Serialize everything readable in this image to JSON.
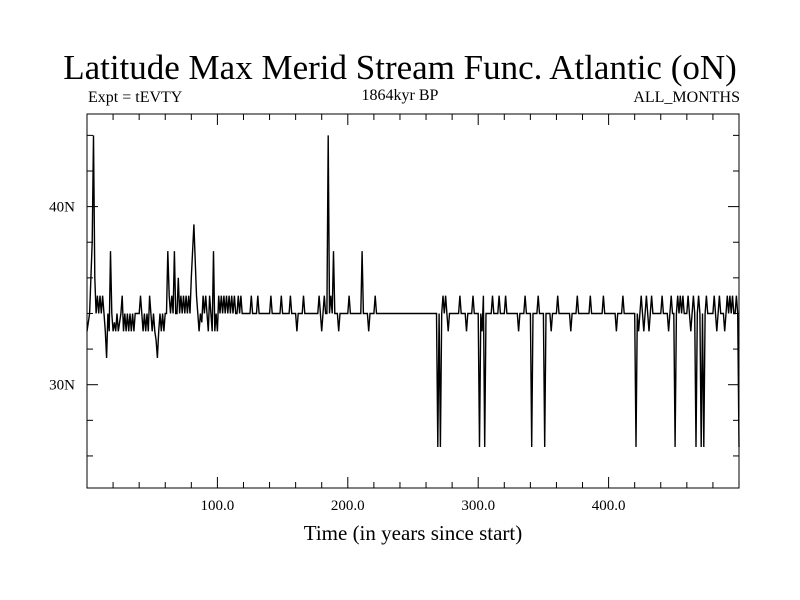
{
  "chart_data": {
    "type": "line",
    "title": "Latitude Max Merid Stream Func. Atlantic (oN)",
    "subtitle_left": "Expt = tEVTY",
    "subtitle_center": "1864kyr BP",
    "subtitle_right": "ALL_MONTHS",
    "xlabel": "Time (in years since start)",
    "ylabel": "",
    "xlim": [
      0,
      500
    ],
    "ylim": [
      24.2,
      45.2
    ],
    "x_ticks": [
      {
        "value": 100,
        "label": "100.0"
      },
      {
        "value": 200,
        "label": "200.0"
      },
      {
        "value": 300,
        "label": "300.0"
      },
      {
        "value": 400,
        "label": "400.0"
      }
    ],
    "y_ticks": [
      {
        "value": 30,
        "label": "30N"
      },
      {
        "value": 40,
        "label": "40N"
      }
    ],
    "series": [
      {
        "name": "latitude_max",
        "color": "#000000",
        "points": [
          [
            0,
            33
          ],
          [
            2,
            34
          ],
          [
            3,
            36
          ],
          [
            4,
            38
          ],
          [
            5,
            44
          ],
          [
            6,
            36
          ],
          [
            7,
            34
          ],
          [
            8,
            35
          ],
          [
            9,
            34
          ],
          [
            10,
            35
          ],
          [
            11,
            34
          ],
          [
            12,
            35
          ],
          [
            13,
            34
          ],
          [
            14,
            33
          ],
          [
            15,
            31.5
          ],
          [
            16,
            34
          ],
          [
            17,
            33
          ],
          [
            18,
            37.5
          ],
          [
            19,
            34
          ],
          [
            20,
            33
          ],
          [
            21,
            33.5
          ],
          [
            22,
            33
          ],
          [
            23,
            34
          ],
          [
            24,
            33
          ],
          [
            25,
            33.5
          ],
          [
            26,
            34
          ],
          [
            27,
            35
          ],
          [
            28,
            33
          ],
          [
            29,
            34
          ],
          [
            30,
            33
          ],
          [
            31,
            34
          ],
          [
            32,
            33
          ],
          [
            33,
            34
          ],
          [
            34,
            33
          ],
          [
            35,
            34
          ],
          [
            36,
            33
          ],
          [
            37,
            34
          ],
          [
            38,
            34
          ],
          [
            40,
            34
          ],
          [
            41,
            35
          ],
          [
            42,
            34
          ],
          [
            43,
            33
          ],
          [
            44,
            34
          ],
          [
            45,
            33
          ],
          [
            46,
            34
          ],
          [
            47,
            33
          ],
          [
            48,
            35
          ],
          [
            49,
            34
          ],
          [
            50,
            33
          ],
          [
            51,
            34
          ],
          [
            52,
            33
          ],
          [
            53,
            32.5
          ],
          [
            54,
            31.5
          ],
          [
            55,
            33
          ],
          [
            56,
            34
          ],
          [
            57,
            33
          ],
          [
            58,
            34
          ],
          [
            59,
            33
          ],
          [
            60,
            34
          ],
          [
            61,
            34
          ],
          [
            62,
            37.5
          ],
          [
            63,
            35
          ],
          [
            64,
            34
          ],
          [
            65,
            35
          ],
          [
            66,
            34
          ],
          [
            67,
            37.5
          ],
          [
            68,
            34
          ],
          [
            69,
            34
          ],
          [
            70,
            36
          ],
          [
            71,
            34
          ],
          [
            72,
            35
          ],
          [
            73,
            34
          ],
          [
            74,
            35
          ],
          [
            75,
            34
          ],
          [
            76,
            35
          ],
          [
            77,
            34
          ],
          [
            78,
            35
          ],
          [
            79,
            34
          ],
          [
            80,
            36
          ],
          [
            81,
            37.5
          ],
          [
            82,
            39
          ],
          [
            83,
            37
          ],
          [
            84,
            35
          ],
          [
            85,
            34
          ],
          [
            86,
            33
          ],
          [
            87,
            34
          ],
          [
            88,
            33.5
          ],
          [
            89,
            35
          ],
          [
            90,
            34
          ],
          [
            91,
            35
          ],
          [
            92,
            34
          ],
          [
            93,
            33
          ],
          [
            94,
            35
          ],
          [
            95,
            34
          ],
          [
            96,
            33
          ],
          [
            97,
            37.5
          ],
          [
            98,
            33
          ],
          [
            99,
            34
          ],
          [
            100,
            33
          ],
          [
            101,
            35
          ],
          [
            102,
            34
          ],
          [
            103,
            35
          ],
          [
            104,
            34
          ],
          [
            105,
            35
          ],
          [
            106,
            34
          ],
          [
            107,
            35
          ],
          [
            108,
            34
          ],
          [
            109,
            35
          ],
          [
            110,
            34
          ],
          [
            111,
            35
          ],
          [
            112,
            34
          ],
          [
            113,
            35
          ],
          [
            114,
            34
          ],
          [
            115,
            34
          ],
          [
            116,
            35
          ],
          [
            117,
            34
          ],
          [
            118,
            35
          ],
          [
            119,
            34
          ],
          [
            120,
            34
          ],
          [
            125,
            34
          ],
          [
            126,
            35
          ],
          [
            127,
            34
          ],
          [
            130,
            34
          ],
          [
            131,
            35
          ],
          [
            132,
            34
          ],
          [
            140,
            34
          ],
          [
            141,
            35
          ],
          [
            142,
            34
          ],
          [
            148,
            34
          ],
          [
            149,
            35
          ],
          [
            150,
            34
          ],
          [
            155,
            34
          ],
          [
            156,
            35
          ],
          [
            157,
            34
          ],
          [
            160,
            34
          ],
          [
            161,
            33
          ],
          [
            162,
            34
          ],
          [
            165,
            34
          ],
          [
            166,
            35
          ],
          [
            167,
            34
          ],
          [
            177,
            34
          ],
          [
            178,
            35
          ],
          [
            179,
            34
          ],
          [
            180,
            33
          ],
          [
            181,
            34
          ],
          [
            182,
            35
          ],
          [
            183,
            34
          ],
          [
            184,
            34
          ],
          [
            185,
            44
          ],
          [
            186,
            34
          ],
          [
            187,
            35
          ],
          [
            188,
            34
          ],
          [
            189,
            37.5
          ],
          [
            190,
            34
          ],
          [
            191,
            34
          ],
          [
            192,
            34
          ],
          [
            193,
            33
          ],
          [
            194,
            34
          ],
          [
            200,
            34
          ],
          [
            201,
            35
          ],
          [
            202,
            34
          ],
          [
            210,
            34
          ],
          [
            211,
            37.5
          ],
          [
            212,
            34
          ],
          [
            215,
            34
          ],
          [
            216,
            33
          ],
          [
            217,
            34
          ],
          [
            220,
            34
          ],
          [
            221,
            35
          ],
          [
            222,
            34
          ],
          [
            268,
            34
          ],
          [
            269,
            26.5
          ],
          [
            270,
            34
          ],
          [
            271,
            26.5
          ],
          [
            272,
            34
          ],
          [
            273,
            35
          ],
          [
            274,
            34
          ],
          [
            275,
            35
          ],
          [
            276,
            34
          ],
          [
            277,
            33
          ],
          [
            278,
            34
          ],
          [
            285,
            34
          ],
          [
            286,
            35
          ],
          [
            287,
            34
          ],
          [
            290,
            34
          ],
          [
            291,
            33
          ],
          [
            292,
            34
          ],
          [
            295,
            34
          ],
          [
            296,
            35
          ],
          [
            297,
            34
          ],
          [
            298,
            34
          ],
          [
            299,
            34
          ],
          [
            300,
            34
          ],
          [
            301,
            26.5
          ],
          [
            302,
            34
          ],
          [
            303,
            33
          ],
          [
            304,
            35
          ],
          [
            305,
            26.5
          ],
          [
            306,
            34
          ],
          [
            307,
            34
          ],
          [
            310,
            34
          ],
          [
            311,
            35
          ],
          [
            312,
            34
          ],
          [
            315,
            34
          ],
          [
            316,
            35
          ],
          [
            317,
            34
          ],
          [
            320,
            34
          ],
          [
            321,
            35
          ],
          [
            322,
            34
          ],
          [
            330,
            34
          ],
          [
            331,
            33
          ],
          [
            332,
            34
          ],
          [
            335,
            34
          ],
          [
            336,
            35
          ],
          [
            337,
            34
          ],
          [
            340,
            34
          ],
          [
            341,
            26.5
          ],
          [
            342,
            34
          ],
          [
            345,
            34
          ],
          [
            346,
            35
          ],
          [
            347,
            34
          ],
          [
            350,
            34
          ],
          [
            351,
            26.5
          ],
          [
            352,
            34
          ],
          [
            355,
            34
          ],
          [
            356,
            33
          ],
          [
            357,
            34
          ],
          [
            360,
            34
          ],
          [
            361,
            35
          ],
          [
            362,
            34
          ],
          [
            370,
            34
          ],
          [
            371,
            33
          ],
          [
            372,
            34
          ],
          [
            375,
            34
          ],
          [
            376,
            35
          ],
          [
            377,
            34
          ],
          [
            385,
            34
          ],
          [
            386,
            35
          ],
          [
            387,
            34
          ],
          [
            395,
            34
          ],
          [
            396,
            35
          ],
          [
            397,
            34
          ],
          [
            405,
            34
          ],
          [
            406,
            33
          ],
          [
            407,
            34
          ],
          [
            410,
            34
          ],
          [
            411,
            35
          ],
          [
            412,
            34
          ],
          [
            420,
            34
          ],
          [
            421,
            26.5
          ],
          [
            422,
            34
          ],
          [
            423,
            33
          ],
          [
            424,
            34
          ],
          [
            425,
            35
          ],
          [
            426,
            34
          ],
          [
            427,
            33
          ],
          [
            428,
            34
          ],
          [
            429,
            35
          ],
          [
            430,
            34
          ],
          [
            431,
            33
          ],
          [
            432,
            34
          ],
          [
            433,
            35
          ],
          [
            434,
            34
          ],
          [
            440,
            34
          ],
          [
            441,
            35
          ],
          [
            442,
            34
          ],
          [
            445,
            34
          ],
          [
            446,
            33
          ],
          [
            447,
            34
          ],
          [
            448,
            35
          ],
          [
            449,
            34
          ],
          [
            450,
            34
          ],
          [
            451,
            26.5
          ],
          [
            452,
            34
          ],
          [
            453,
            35
          ],
          [
            454,
            34
          ],
          [
            455,
            35
          ],
          [
            456,
            34
          ],
          [
            457,
            35
          ],
          [
            458,
            34
          ],
          [
            460,
            34
          ],
          [
            461,
            35
          ],
          [
            462,
            34
          ],
          [
            463,
            33
          ],
          [
            464,
            34
          ],
          [
            465,
            35
          ],
          [
            466,
            34
          ],
          [
            467,
            26.5
          ],
          [
            468,
            34
          ],
          [
            469,
            35
          ],
          [
            470,
            34
          ],
          [
            471,
            26.5
          ],
          [
            472,
            34
          ],
          [
            473,
            26.5
          ],
          [
            474,
            34
          ],
          [
            475,
            35
          ],
          [
            476,
            34
          ],
          [
            477,
            34
          ],
          [
            478,
            34
          ],
          [
            480,
            34
          ],
          [
            481,
            35
          ],
          [
            482,
            34
          ],
          [
            483,
            33
          ],
          [
            484,
            34
          ],
          [
            485,
            35
          ],
          [
            486,
            34
          ],
          [
            487,
            34
          ],
          [
            488,
            34
          ],
          [
            489,
            33
          ],
          [
            490,
            34
          ],
          [
            491,
            35
          ],
          [
            492,
            34
          ],
          [
            493,
            35
          ],
          [
            494,
            34
          ],
          [
            495,
            35
          ],
          [
            496,
            34
          ],
          [
            497,
            34
          ],
          [
            498,
            35
          ],
          [
            499,
            34
          ],
          [
            500,
            26.5
          ]
        ]
      }
    ],
    "grid": false,
    "legend": "none"
  }
}
